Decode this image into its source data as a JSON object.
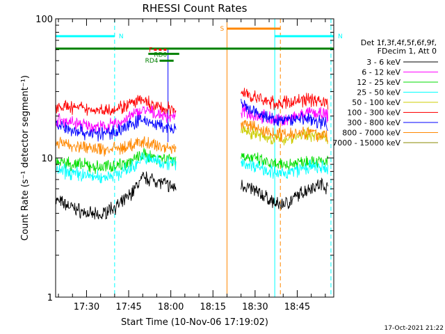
{
  "chart_data": {
    "type": "line",
    "title": "RHESSI Count Rates",
    "xlabel": "Start Time (10-Nov-06 17:19:02)",
    "ylabel": "Count Rate (s⁻¹ detector segment⁻¹)",
    "yscale": "log",
    "ylim": [
      1,
      100
    ],
    "y_ticks": [
      "1",
      "10",
      "100"
    ],
    "xlim": [
      "17:19",
      "18:58"
    ],
    "x_ticks": [
      "17:30",
      "17:45",
      "18:00",
      "18:15",
      "18:30",
      "18:45"
    ],
    "grid": false,
    "legend_position": "right",
    "legend_header": [
      "Det 1f,3f,4f,5f,6f,9f,",
      "FDecim 1, Att 0"
    ],
    "timestamp": "17-Oct-2021 21:22",
    "data_gaps": [
      [
        "18:03",
        "18:25"
      ]
    ],
    "series": [
      {
        "name": "3 - 6 keV",
        "color": "#000000",
        "segments": [
          {
            "x": [
              "17:19",
              "17:25",
              "17:30",
              "17:35",
              "17:38",
              "17:42",
              "17:46",
              "17:50",
              "17:54",
              "17:58",
              "18:02"
            ],
            "y": [
              5.0,
              4.4,
              4.0,
              3.8,
              4.3,
              4.6,
              5.6,
              7.2,
              7.0,
              6.5,
              6.0
            ]
          },
          {
            "x": [
              "18:25",
              "18:30",
              "18:34",
              "18:38",
              "18:42",
              "18:46",
              "18:50",
              "18:54",
              "18:56"
            ],
            "y": [
              6.5,
              5.8,
              5.2,
              4.6,
              4.8,
              5.5,
              6.2,
              6.5,
              6.0
            ]
          }
        ]
      },
      {
        "name": "6 - 12 keV",
        "color": "#ff00ff",
        "segments": [
          {
            "x": [
              "17:19",
              "17:25",
              "17:30",
              "17:35",
              "17:38",
              "17:42",
              "17:46",
              "17:50",
              "17:54",
              "17:58",
              "18:02"
            ],
            "y": [
              19,
              18,
              17,
              16.5,
              17,
              18,
              20,
              22,
              21,
              20,
              19.5
            ]
          },
          {
            "x": [
              "18:25",
              "18:30",
              "18:34",
              "18:38",
              "18:42",
              "18:46",
              "18:50",
              "18:54",
              "18:56"
            ],
            "y": [
              22,
              20.5,
              19.5,
              18.5,
              19,
              20,
              21,
              20.5,
              20
            ]
          }
        ]
      },
      {
        "name": "12 - 25 keV",
        "color": "#00dd00",
        "segments": [
          {
            "x": [
              "17:19",
              "17:25",
              "17:30",
              "17:35",
              "17:38",
              "17:42",
              "17:46",
              "17:50",
              "17:54",
              "17:58",
              "18:02"
            ],
            "y": [
              9.5,
              9.0,
              8.8,
              8.5,
              8.8,
              9.0,
              9.5,
              10.5,
              10.2,
              10.0,
              9.8
            ]
          },
          {
            "x": [
              "18:25",
              "18:30",
              "18:34",
              "18:38",
              "18:42",
              "18:46",
              "18:50",
              "18:54",
              "18:56"
            ],
            "y": [
              10.5,
              9.8,
              9.2,
              8.8,
              9.0,
              9.4,
              9.6,
              9.4,
              9.2
            ]
          }
        ]
      },
      {
        "name": "25 - 50 keV",
        "color": "#00ffff",
        "segments": [
          {
            "x": [
              "17:19",
              "17:25",
              "17:30",
              "17:35",
              "17:38",
              "17:42",
              "17:46",
              "17:50",
              "17:54",
              "17:58",
              "18:02"
            ],
            "y": [
              8.2,
              7.8,
              7.5,
              7.2,
              7.5,
              7.8,
              8.5,
              10.0,
              9.6,
              9.3,
              9.0
            ]
          },
          {
            "x": [
              "18:25",
              "18:30",
              "18:34",
              "18:38",
              "18:42",
              "18:46",
              "18:50",
              "18:54",
              "18:56"
            ],
            "y": [
              9.2,
              8.8,
              8.3,
              7.6,
              7.9,
              8.3,
              8.6,
              8.4,
              8.2
            ]
          }
        ]
      },
      {
        "name": "50 - 100 keV",
        "color": "#cccc00",
        "segments": [
          {
            "x": [
              "18:25",
              "18:30",
              "18:34",
              "18:38",
              "18:42",
              "18:46",
              "18:50",
              "18:54",
              "18:56"
            ],
            "y": [
              16,
              15,
              14,
              13.5,
              13.8,
              14.5,
              14.8,
              14,
              13.5
            ]
          }
        ]
      },
      {
        "name": "100 - 300 keV",
        "color": "#ff0000",
        "segments": [
          {
            "x": [
              "17:19",
              "17:25",
              "17:30",
              "17:35",
              "17:38",
              "17:42",
              "17:46",
              "17:50",
              "17:54",
              "17:58",
              "18:02"
            ],
            "y": [
              24,
              23,
              22.5,
              22,
              22.5,
              23,
              24.5,
              26,
              23.5,
              22.5,
              22
            ]
          },
          {
            "x": [
              "18:25",
              "18:30",
              "18:34",
              "18:38",
              "18:42",
              "18:46",
              "18:50",
              "18:54",
              "18:56"
            ],
            "y": [
              30,
              27,
              25.5,
              24.5,
              25,
              26,
              26.5,
              25.5,
              25
            ]
          }
        ]
      },
      {
        "name": "300 - 800 keV",
        "color": "#0000ff",
        "segments": [
          {
            "x": [
              "17:19",
              "17:25",
              "17:30",
              "17:35",
              "17:38",
              "17:42",
              "17:46",
              "17:50",
              "17:54",
              "17:58",
              "18:02"
            ],
            "y": [
              17,
              16,
              15.2,
              14.8,
              15.2,
              16,
              17.5,
              19,
              17.5,
              16.5,
              16
            ]
          },
          {
            "x": [
              "18:25",
              "18:30",
              "18:34",
              "18:38",
              "18:42",
              "18:46",
              "18:50",
              "18:54",
              "18:56"
            ],
            "y": [
              24,
              21,
              19.5,
              18.5,
              18.8,
              19.5,
              19,
              18,
              17.5
            ]
          }
        ]
      },
      {
        "name": "800 - 7000 keV",
        "color": "#ff8800",
        "segments": [
          {
            "x": [
              "17:19",
              "17:25",
              "17:30",
              "17:35",
              "17:38",
              "17:42",
              "17:46",
              "17:50",
              "17:54",
              "17:58",
              "18:02"
            ],
            "y": [
              13,
              12.3,
              11.8,
              11.5,
              11.6,
              11.8,
              12.2,
              13,
              12.4,
              12.0,
              11.6
            ]
          },
          {
            "x": [
              "18:25",
              "18:30",
              "18:34",
              "18:38",
              "18:42",
              "18:46",
              "18:50",
              "18:54",
              "18:56"
            ],
            "y": [
              18,
              16.5,
              15.5,
              14.8,
              15,
              15.5,
              15.2,
              14.5,
              14
            ]
          }
        ]
      },
      {
        "name": "7000 - 15000 keV",
        "color": "#888800",
        "segments": []
      }
    ],
    "annotations": [
      {
        "label": "N",
        "color": "#00ffff",
        "x_start": "17:19",
        "x_end": "17:40",
        "y": 75
      },
      {
        "label": "N",
        "color": "#00ffff",
        "x_start": "18:37",
        "x_end": "18:58",
        "y": 75
      },
      {
        "label": "S",
        "color": "#ff8800",
        "x_start": "18:20",
        "x_end": "18:39",
        "y": 85
      },
      {
        "label": "F",
        "color": "#ff0000",
        "x_start": "17:54",
        "x_end": "17:59",
        "y": 60
      },
      {
        "label": "RD0",
        "color": "#008000",
        "x_start": "17:52",
        "x_end": "18:03",
        "y": 56
      },
      {
        "label": "RD4",
        "color": "#008000",
        "x_start": "17:56",
        "x_end": "18:01",
        "y": 50
      }
    ],
    "horizontal_lines": [
      {
        "color": "#008000",
        "y": 61
      }
    ],
    "vertical_markers": [
      {
        "color": "#00ffff",
        "style": "solid",
        "x": "17:19"
      },
      {
        "color": "#00ffff",
        "style": "dashed",
        "x": "17:40"
      },
      {
        "color": "#ff8800",
        "style": "solid",
        "x": "18:20"
      },
      {
        "color": "#ff8800",
        "style": "dashed",
        "x": "18:39"
      },
      {
        "color": "#00ffff",
        "style": "solid",
        "x": "18:37"
      },
      {
        "color": "#00ffff",
        "style": "dashed",
        "x": "18:57"
      },
      {
        "color": "#0000ff",
        "style": "solid",
        "x": "17:59",
        "y_from": 13,
        "y_to": 60
      }
    ]
  }
}
